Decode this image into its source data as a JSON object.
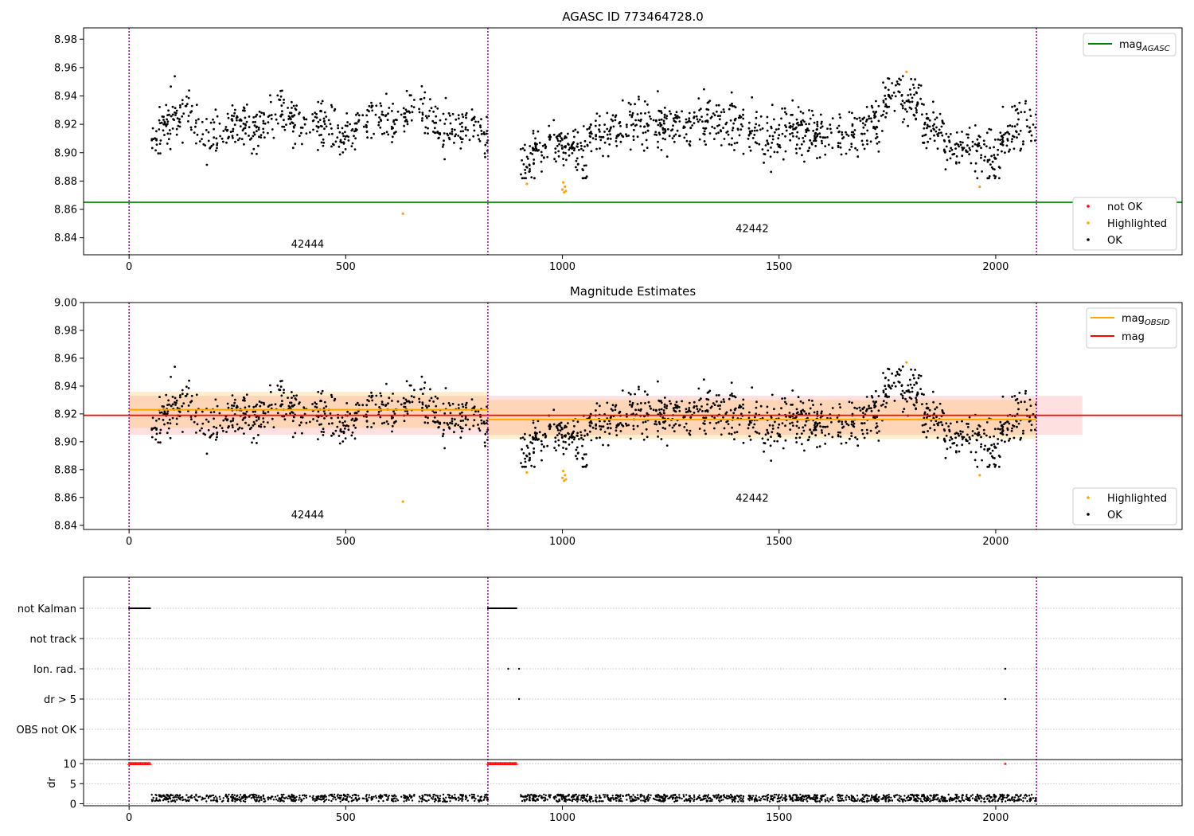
{
  "chart_data": [
    {
      "type": "scatter",
      "title": "AGASC ID 773464728.0",
      "xlim": [
        -105,
        2430
      ],
      "ylim": [
        8.828,
        8.988
      ],
      "xticks": [
        0,
        500,
        1000,
        1500,
        2000
      ],
      "yticks": [
        8.84,
        8.86,
        8.88,
        8.9,
        8.92,
        8.94,
        8.96,
        8.98
      ],
      "ytick_labels": [
        "8.84",
        "8.86",
        "8.88",
        "8.90",
        "8.92",
        "8.94",
        "8.96",
        "8.98"
      ],
      "obsid_boundaries": [
        0,
        828,
        2094
      ],
      "obsid_labels": [
        {
          "text": "42444",
          "x": 412,
          "y": 8.833
        },
        {
          "text": "42442",
          "x": 1438,
          "y": 8.844
        }
      ],
      "reference_line": {
        "name": "mag_AGASC",
        "y": 8.865,
        "color": "#008000"
      },
      "highlighted": {
        "x": [
          632,
          918,
          1000,
          1002,
          1004,
          1006,
          1008,
          1794,
          1963
        ],
        "y": [
          8.857,
          8.878,
          8.874,
          8.879,
          8.872,
          8.876,
          8.873,
          8.957,
          8.876
        ]
      },
      "legend_line": {
        "label_main": "mag",
        "label_sub": "AGASC",
        "color": "#008000",
        "position": "upper right"
      },
      "legend_points": {
        "position": "lower right",
        "entries": [
          {
            "label": "not OK",
            "color": "#ff0000"
          },
          {
            "label": "Highlighted",
            "color": "#ffa500"
          },
          {
            "label": "OK",
            "color": "#000000"
          }
        ]
      },
      "segments": [
        {
          "x0": 52,
          "x1": 828,
          "n": 590,
          "mean": 8.921,
          "noise": 0.0085,
          "seed": 11
        },
        {
          "x0": 900,
          "x1": 2094,
          "n": 1050,
          "mean": 8.917,
          "noise": 0.0085,
          "seed": 29
        }
      ]
    },
    {
      "type": "scatter",
      "title": "Magnitude Estimates",
      "xlim": [
        -105,
        2430
      ],
      "ylim": [
        8.837,
        9.0
      ],
      "xticks": [
        0,
        500,
        1000,
        1500,
        2000
      ],
      "yticks": [
        8.84,
        8.86,
        8.88,
        8.9,
        8.92,
        8.94,
        8.96,
        8.98,
        9.0
      ],
      "ytick_labels": [
        "8.84",
        "8.86",
        "8.88",
        "8.90",
        "8.92",
        "8.94",
        "8.96",
        "8.98",
        "9.00"
      ],
      "obsid_boundaries": [
        0,
        828,
        2094
      ],
      "obsid_labels": [
        {
          "text": "42444",
          "x": 412,
          "y": 8.845
        },
        {
          "text": "42442",
          "x": 1438,
          "y": 8.857
        }
      ],
      "mag": {
        "y": 8.919,
        "band": [
          8.905,
          8.933
        ],
        "x0": 0,
        "x1": 2200,
        "color": "#ff0000"
      },
      "mag_obsid": [
        {
          "x0": 0,
          "x1": 828,
          "y": 8.923,
          "band": [
            8.91,
            8.936
          ]
        },
        {
          "x0": 828,
          "x1": 2094,
          "y": 8.916,
          "band": [
            8.902,
            8.93
          ]
        }
      ],
      "legend_lines": {
        "position": "upper right",
        "entries": [
          {
            "label_main": "mag",
            "label_sub": "OBSID",
            "color": "#ffa500"
          },
          {
            "label_main": "mag",
            "label_sub": "",
            "color": "#ff0000"
          }
        ]
      },
      "legend_points": {
        "position": "lower right",
        "entries": [
          {
            "label": "Highlighted",
            "color": "#ffa500"
          },
          {
            "label": "OK",
            "color": "#000000"
          }
        ]
      }
    },
    {
      "type": "scatter",
      "title": "",
      "xlim": [
        -105,
        2430
      ],
      "xticks": [
        0,
        500,
        1000,
        1500,
        2000
      ],
      "flag_rows": [
        "not Kalman",
        "not track",
        "Ion. rad.",
        "dr > 5",
        "OBS not OK"
      ],
      "flag_points": [
        {
          "row": "not Kalman",
          "ranges": [
            [
              0,
              50
            ],
            [
              828,
              896
            ]
          ]
        },
        {
          "row": "Ion. rad.",
          "x": [
            875,
            900,
            2022
          ]
        },
        {
          "row": "dr > 5",
          "x": [
            900,
            2022
          ]
        }
      ],
      "dr_ylabel": "dr",
      "dr_ylim": [
        -0.5,
        11
      ],
      "dr_yticks": [
        0,
        5,
        10
      ],
      "dr_gridlines": [
        0,
        5,
        10
      ],
      "dr_capped": {
        "value": 10,
        "ranges": [
          [
            0,
            50
          ],
          [
            828,
            896
          ]
        ],
        "x": [
          2022
        ],
        "color": "#ff0000"
      },
      "dr_typical": {
        "low": 0.5,
        "high": 2.3
      },
      "obsid_boundaries": [
        0,
        828,
        2094
      ]
    }
  ]
}
